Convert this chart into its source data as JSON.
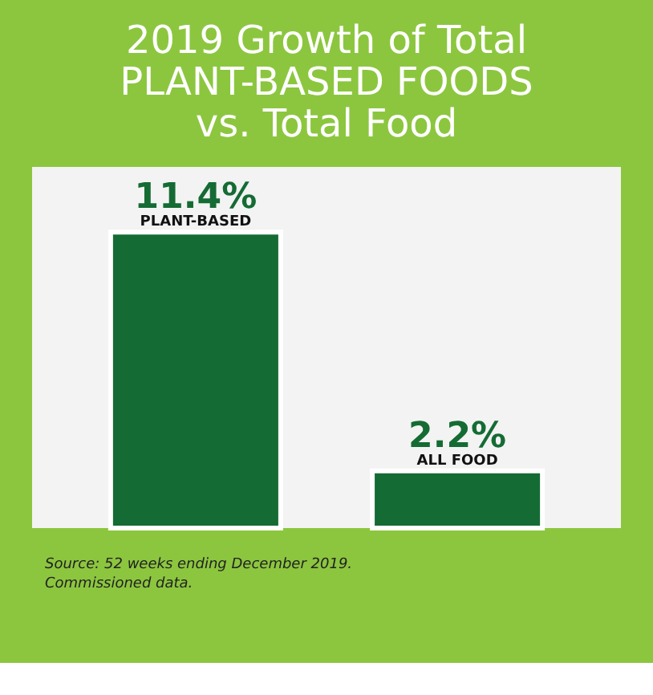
{
  "chart_data": {
    "type": "bar",
    "title": [
      "2019 Growth of Total",
      "PLANT-BASED FOODS",
      "vs. Total Food"
    ],
    "categories": [
      "PLANT-BASED",
      "ALL FOOD"
    ],
    "values": [
      11.4,
      2.2
    ],
    "value_labels": [
      "11.4%",
      "2.2%"
    ],
    "color": "#156b34",
    "annotations": [
      "Source: 52 weeks ending December 2019.",
      "Commissioned data."
    ]
  }
}
